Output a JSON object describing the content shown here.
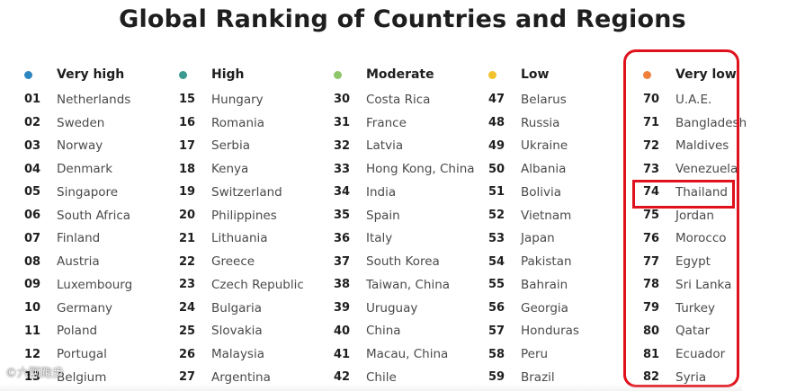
{
  "title": "Global Ranking of Countries and Regions",
  "columns": [
    {
      "label": "Very high",
      "color": "#2e86c1",
      "entries": [
        {
          "rank": "01",
          "name": "Netherlands"
        },
        {
          "rank": "02",
          "name": "Sweden"
        },
        {
          "rank": "03",
          "name": "Norway"
        },
        {
          "rank": "04",
          "name": "Denmark"
        },
        {
          "rank": "05",
          "name": "Singapore"
        },
        {
          "rank": "06",
          "name": "South Africa"
        },
        {
          "rank": "07",
          "name": "Finland"
        },
        {
          "rank": "08",
          "name": "Austria"
        },
        {
          "rank": "09",
          "name": "Luxembourg"
        },
        {
          "rank": "10",
          "name": "Germany"
        },
        {
          "rank": "11",
          "name": "Poland"
        },
        {
          "rank": "12",
          "name": "Portugal"
        },
        {
          "rank": "13",
          "name": "Belgium"
        }
      ]
    },
    {
      "label": "High",
      "color": "#3a9a8f",
      "entries": [
        {
          "rank": "15",
          "name": "Hungary"
        },
        {
          "rank": "16",
          "name": "Romania"
        },
        {
          "rank": "17",
          "name": "Serbia"
        },
        {
          "rank": "18",
          "name": "Kenya"
        },
        {
          "rank": "19",
          "name": "Switzerland"
        },
        {
          "rank": "20",
          "name": "Philippines"
        },
        {
          "rank": "21",
          "name": "Lithuania"
        },
        {
          "rank": "22",
          "name": "Greece"
        },
        {
          "rank": "23",
          "name": "Czech Republic"
        },
        {
          "rank": "24",
          "name": "Bulgaria"
        },
        {
          "rank": "25",
          "name": "Slovakia"
        },
        {
          "rank": "26",
          "name": "Malaysia"
        },
        {
          "rank": "27",
          "name": "Argentina"
        }
      ]
    },
    {
      "label": "Moderate",
      "color": "#8dc56a",
      "entries": [
        {
          "rank": "30",
          "name": "Costa Rica"
        },
        {
          "rank": "31",
          "name": "France"
        },
        {
          "rank": "32",
          "name": "Latvia"
        },
        {
          "rank": "33",
          "name": "Hong Kong, China"
        },
        {
          "rank": "34",
          "name": "India"
        },
        {
          "rank": "35",
          "name": "Spain"
        },
        {
          "rank": "36",
          "name": "Italy"
        },
        {
          "rank": "37",
          "name": "South Korea"
        },
        {
          "rank": "38",
          "name": "Taiwan, China"
        },
        {
          "rank": "39",
          "name": "Uruguay"
        },
        {
          "rank": "40",
          "name": "China"
        },
        {
          "rank": "41",
          "name": "Macau, China"
        },
        {
          "rank": "42",
          "name": "Chile"
        }
      ]
    },
    {
      "label": "Low",
      "color": "#f2c12e",
      "entries": [
        {
          "rank": "47",
          "name": "Belarus"
        },
        {
          "rank": "48",
          "name": "Russia"
        },
        {
          "rank": "49",
          "name": "Ukraine"
        },
        {
          "rank": "50",
          "name": "Albania"
        },
        {
          "rank": "51",
          "name": "Bolivia"
        },
        {
          "rank": "52",
          "name": "Vietnam"
        },
        {
          "rank": "53",
          "name": "Japan"
        },
        {
          "rank": "54",
          "name": "Pakistan"
        },
        {
          "rank": "55",
          "name": "Bahrain"
        },
        {
          "rank": "56",
          "name": "Georgia"
        },
        {
          "rank": "57",
          "name": "Honduras"
        },
        {
          "rank": "58",
          "name": "Peru"
        },
        {
          "rank": "59",
          "name": "Brazil"
        }
      ]
    },
    {
      "label": "Very low",
      "color": "#f07f3c",
      "entries": [
        {
          "rank": "70",
          "name": "U.A.E."
        },
        {
          "rank": "71",
          "name": "Bangladesh"
        },
        {
          "rank": "72",
          "name": "Maldives"
        },
        {
          "rank": "73",
          "name": "Venezuela"
        },
        {
          "rank": "74",
          "name": "Thailand"
        },
        {
          "rank": "75",
          "name": "Jordan"
        },
        {
          "rank": "76",
          "name": "Morocco"
        },
        {
          "rank": "77",
          "name": "Egypt"
        },
        {
          "rank": "78",
          "name": "Sri Lanka"
        },
        {
          "rank": "79",
          "name": "Turkey"
        },
        {
          "rank": "80",
          "name": "Qatar"
        },
        {
          "rank": "81",
          "name": "Ecuador"
        },
        {
          "rank": "82",
          "name": "Syria"
        }
      ]
    }
  ],
  "highlight_color": "#e0111b",
  "watermark": "©六颗跑步"
}
